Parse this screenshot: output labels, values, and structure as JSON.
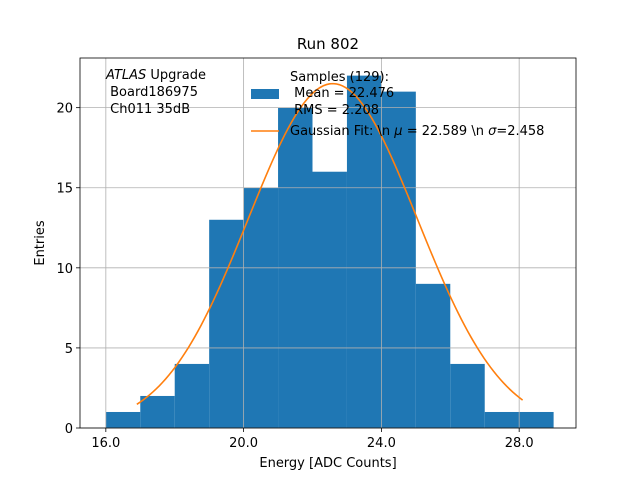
{
  "chart_data": {
    "type": "bar",
    "title": "Run 802",
    "xlabel": "Energy [ADC Counts]",
    "ylabel": "Entries",
    "xlim": [
      15.25,
      29.65
    ],
    "ylim": [
      0,
      23.1
    ],
    "x_ticks": [
      16.0,
      20.0,
      24.0,
      28.0
    ],
    "x_tick_labels": [
      "16.0",
      "20.0",
      "24.0",
      "28.0"
    ],
    "y_ticks": [
      0,
      5,
      10,
      15,
      20
    ],
    "y_tick_labels": [
      "0",
      "5",
      "10",
      "15",
      "20"
    ],
    "grid": true,
    "bin_edges": [
      16,
      17,
      18,
      19,
      20,
      21,
      22,
      23,
      24,
      25,
      26,
      27,
      28,
      29
    ],
    "counts": [
      1,
      2,
      4,
      13,
      15,
      20,
      16,
      22,
      21,
      9,
      4,
      1,
      1
    ],
    "bar_color": "#1f77b4",
    "fit": {
      "mu": 22.589,
      "sigma": 2.458,
      "amplitude": 21.5,
      "x_range": [
        16.9,
        28.1
      ],
      "color": "#ff7f0e"
    },
    "annotation": {
      "italic": "ATLAS",
      "line1_rest": " Upgrade",
      "line2": " Board186975",
      "line3": " Ch011 35dB"
    },
    "legend": {
      "placement": "top-right",
      "title": "Samples (129):",
      "hist_label_line1": " Mean = 22.476",
      "hist_label_line2": " RMS = 2.208",
      "fit_label_prefix": "Gaussian Fit: \\n ",
      "fit_mu_symbol": "μ",
      "fit_mu_value": " = 22.589 \\n ",
      "fit_sigma_symbol": "σ",
      "fit_sigma_value": "=2.458"
    }
  }
}
